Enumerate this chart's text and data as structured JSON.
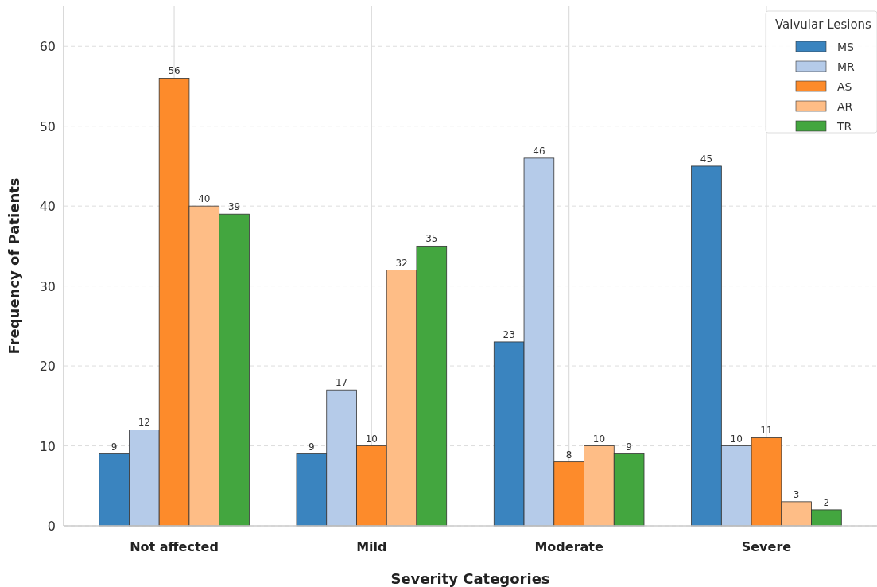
{
  "chart_data": {
    "type": "bar",
    "xlabel": "Severity Categories",
    "ylabel": "Frequency of Patients",
    "legend_title": "Valvular Lesions",
    "categories": [
      "Not affected",
      "Mild",
      "Moderate",
      "Severe"
    ],
    "series": [
      {
        "name": "MS",
        "color": "#3a84bf",
        "values": [
          9,
          9,
          23,
          45
        ]
      },
      {
        "name": "MR",
        "color": "#b5cbe9",
        "values": [
          12,
          17,
          46,
          10
        ]
      },
      {
        "name": "AS",
        "color": "#fd8b2b",
        "values": [
          56,
          10,
          8,
          11
        ]
      },
      {
        "name": "AR",
        "color": "#febd86",
        "values": [
          40,
          32,
          10,
          3
        ]
      },
      {
        "name": "TR",
        "color": "#43a63f",
        "values": [
          39,
          35,
          9,
          2
        ]
      }
    ],
    "ylim": [
      0,
      65
    ],
    "yticks": [
      0,
      10,
      20,
      30,
      40,
      50,
      60
    ],
    "grid": true,
    "legend": "top right",
    "data_labels": true
  }
}
